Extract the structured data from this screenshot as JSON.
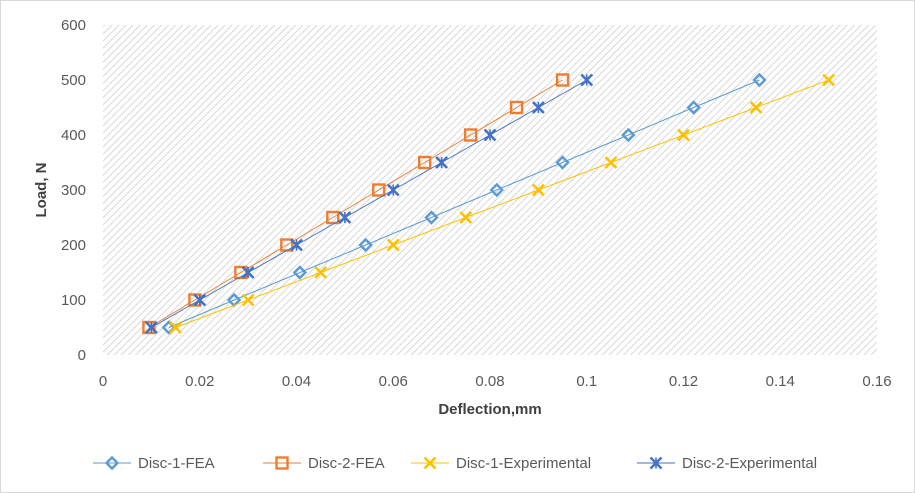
{
  "chart_data": {
    "type": "scatter",
    "title": "",
    "xlabel": "Deflection,mm",
    "ylabel": "Load, N",
    "xlim": [
      0,
      0.16
    ],
    "ylim": [
      0,
      600
    ],
    "x_ticks": [
      "0",
      "0.02",
      "0.04",
      "0.06",
      "0.08",
      "0.1",
      "0.12",
      "0.14",
      "0.16"
    ],
    "y_ticks": [
      "0",
      "100",
      "200",
      "300",
      "400",
      "500",
      "600"
    ],
    "grid": false,
    "plot_area_pattern": "diagonal-hatch",
    "legend_position": "bottom",
    "series": [
      {
        "name": "Disc-1-FEA",
        "marker": "diamond-icon",
        "color": "#5b9bd5",
        "points": [
          [
            0.0136,
            50
          ],
          [
            0.0271,
            100
          ],
          [
            0.0407,
            150
          ],
          [
            0.0543,
            200
          ],
          [
            0.0679,
            250
          ],
          [
            0.0814,
            300
          ],
          [
            0.095,
            350
          ],
          [
            0.1086,
            400
          ],
          [
            0.1221,
            450
          ],
          [
            0.1357,
            500
          ]
        ]
      },
      {
        "name": "Disc-2-FEA",
        "marker": "square-icon",
        "color": "#ed7d31",
        "points": [
          [
            0.0095,
            50
          ],
          [
            0.019,
            100
          ],
          [
            0.0285,
            150
          ],
          [
            0.038,
            200
          ],
          [
            0.0475,
            250
          ],
          [
            0.057,
            300
          ],
          [
            0.0665,
            350
          ],
          [
            0.076,
            400
          ],
          [
            0.0855,
            450
          ],
          [
            0.095,
            500
          ]
        ]
      },
      {
        "name": "Disc-1-Experimental",
        "marker": "x-cross-icon",
        "color": "#ffc000",
        "points": [
          [
            0.015,
            50
          ],
          [
            0.03,
            100
          ],
          [
            0.045,
            150
          ],
          [
            0.06,
            200
          ],
          [
            0.075,
            250
          ],
          [
            0.09,
            300
          ],
          [
            0.105,
            350
          ],
          [
            0.12,
            400
          ],
          [
            0.135,
            450
          ],
          [
            0.15,
            500
          ]
        ]
      },
      {
        "name": "Disc-2-Experimental",
        "marker": "star-cross-icon",
        "color": "#4472c4",
        "points": [
          [
            0.01,
            50
          ],
          [
            0.02,
            100
          ],
          [
            0.03,
            150
          ],
          [
            0.04,
            200
          ],
          [
            0.05,
            250
          ],
          [
            0.06,
            300
          ],
          [
            0.07,
            350
          ],
          [
            0.08,
            400
          ],
          [
            0.09,
            450
          ],
          [
            0.1,
            500
          ]
        ]
      }
    ]
  }
}
